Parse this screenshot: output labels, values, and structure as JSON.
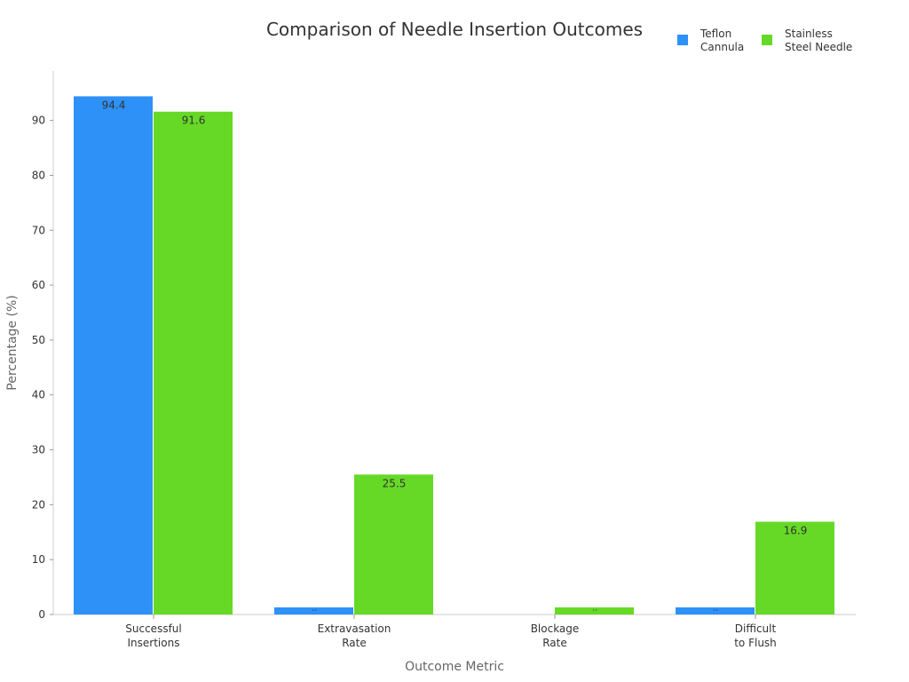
{
  "chart_data": {
    "type": "bar",
    "title": "Comparison of Needle Insertion Outcomes",
    "xlabel": "Outcome Metric",
    "ylabel": "Percentage (%)",
    "categories": [
      [
        "Successful",
        "Insertions"
      ],
      [
        "Extravasation",
        "Rate"
      ],
      [
        "Blockage",
        "Rate"
      ],
      [
        "Difficult",
        "to Flush"
      ]
    ],
    "series": [
      {
        "name": [
          "Teflon",
          "Cannula"
        ],
        "color": "#2d91f7",
        "values": [
          94.4,
          1.3,
          0.0,
          1.3
        ]
      },
      {
        "name": [
          "Stainless",
          "Steel Needle"
        ],
        "color": "#66d926",
        "values": [
          91.6,
          25.5,
          1.3,
          16.9
        ]
      }
    ],
    "ylim": [
      0,
      99
    ],
    "yticks": [
      0,
      10,
      20,
      30,
      40,
      50,
      60,
      70,
      80,
      90
    ],
    "legend_position": "top-right",
    "grid": false
  }
}
